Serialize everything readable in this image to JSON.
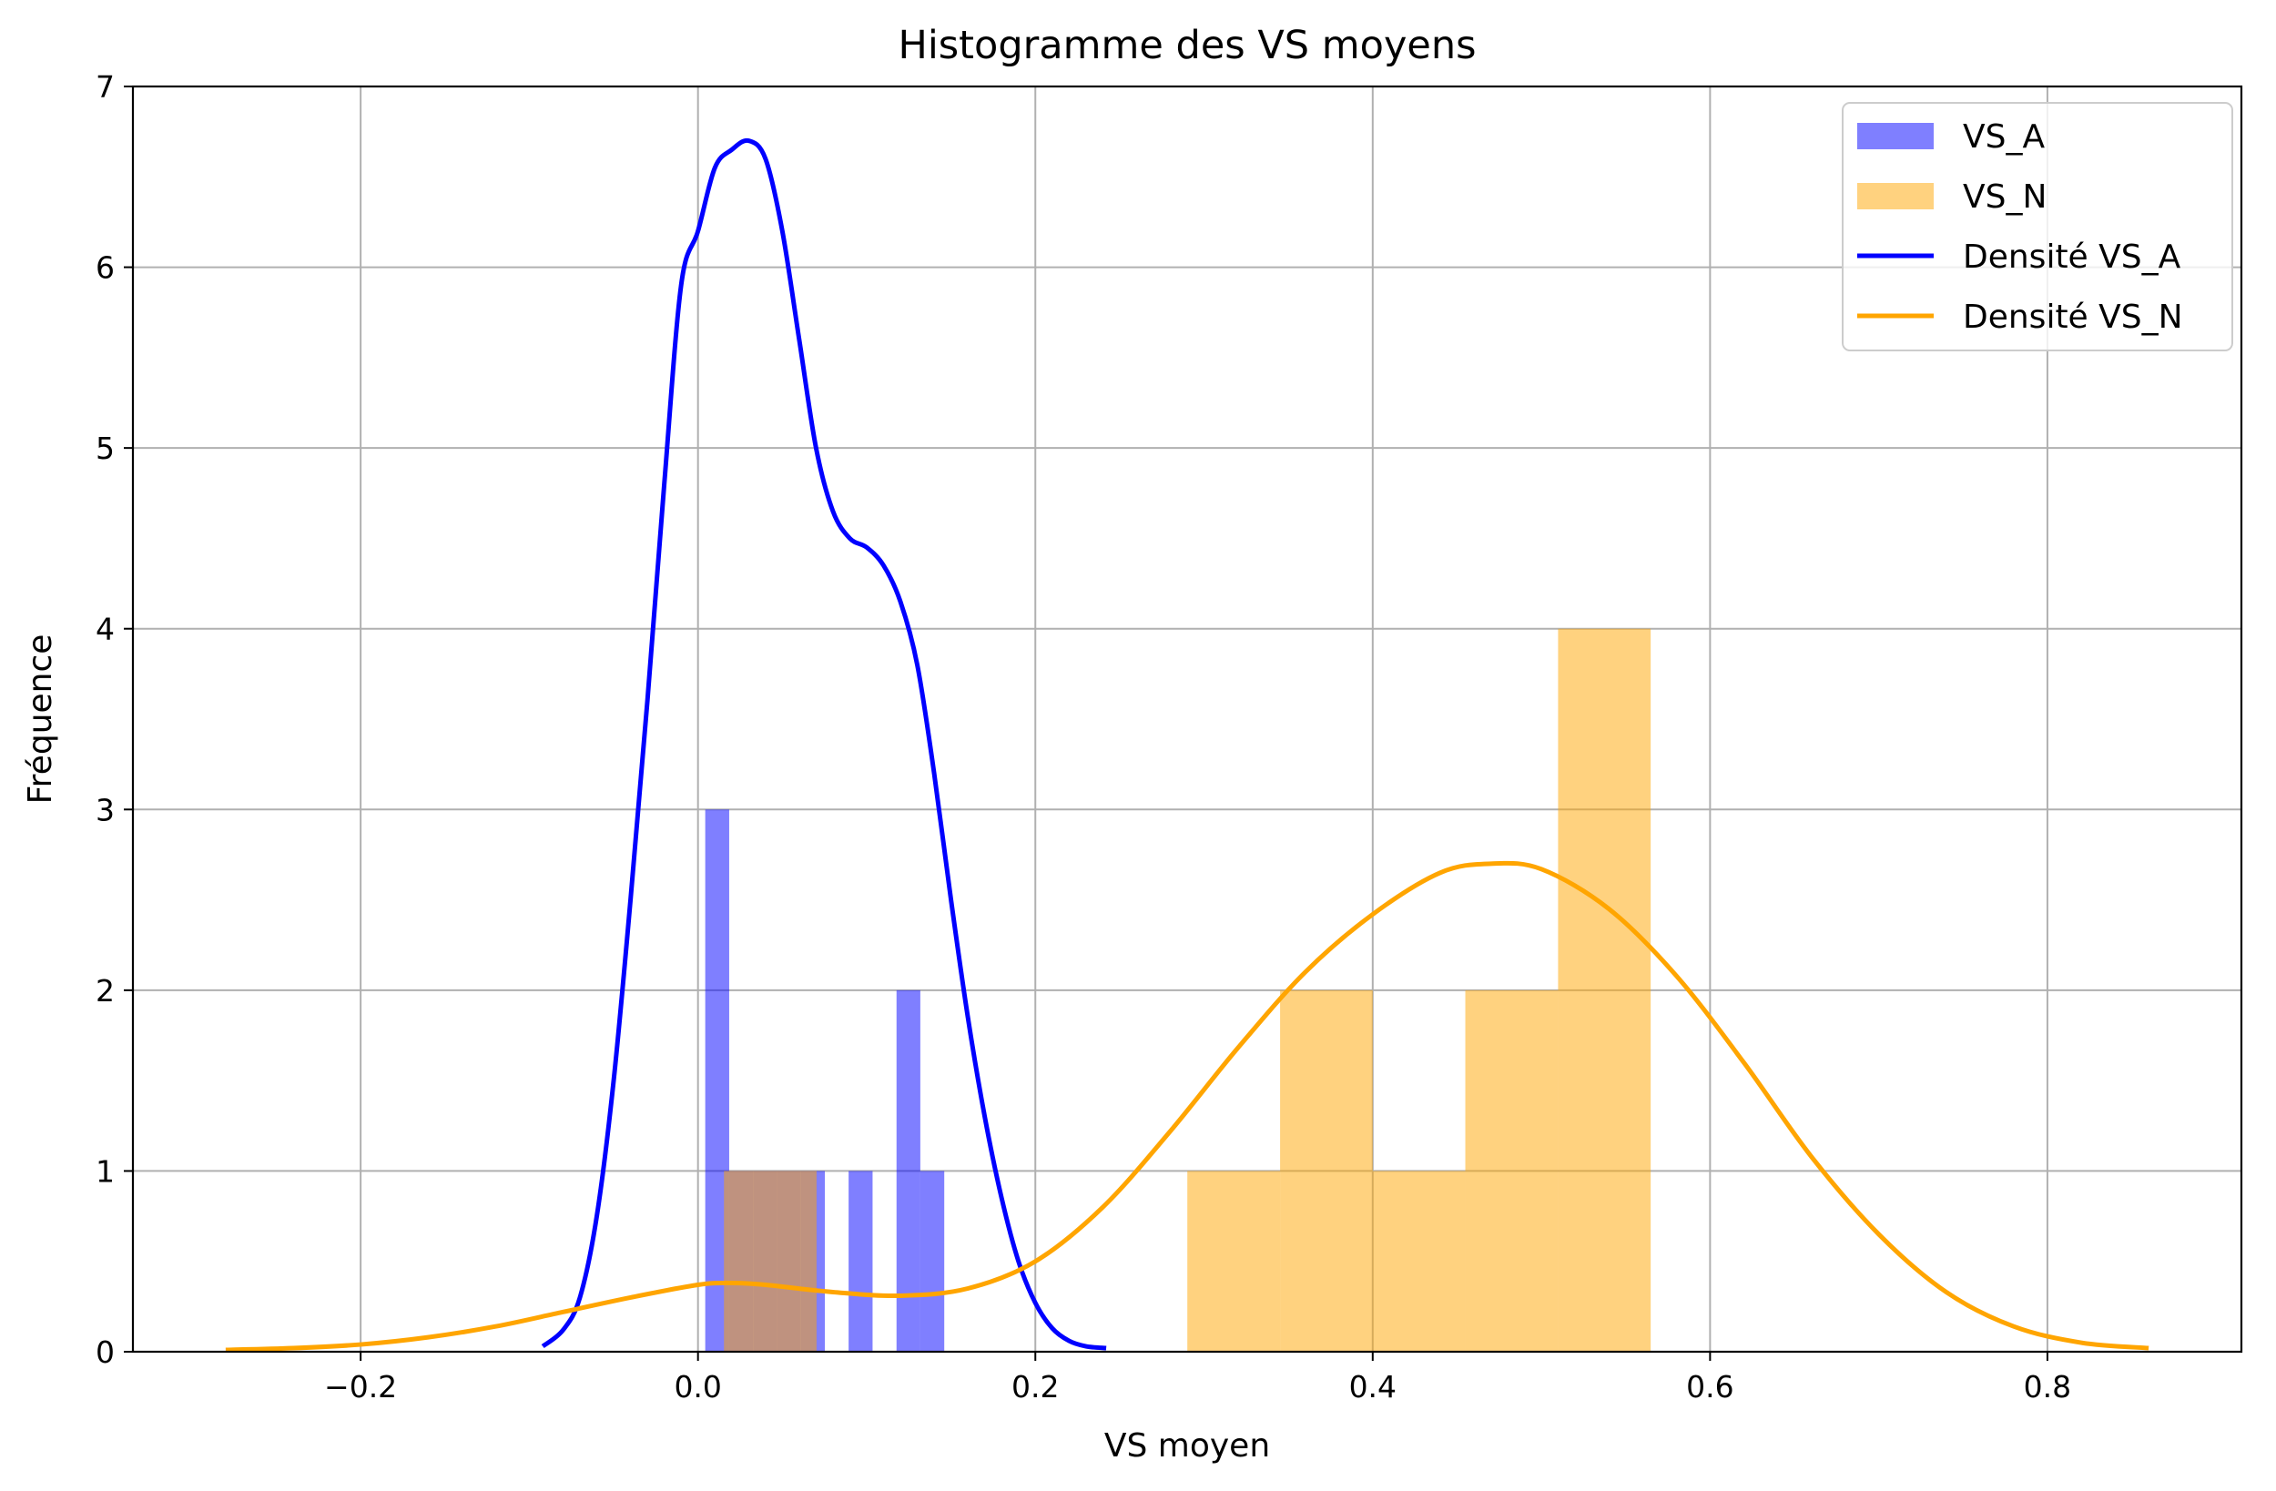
{
  "chart_data": {
    "type": "bar",
    "title": "Histogramme des VS moyens",
    "xlabel": "VS moyen",
    "ylabel": "Fréquence",
    "xlim": [
      -0.335,
      0.915
    ],
    "ylim": [
      0,
      7
    ],
    "xticks": [
      -0.2,
      0.0,
      0.2,
      0.4,
      0.6,
      0.8
    ],
    "xtick_labels": [
      "−0.2",
      "0.0",
      "0.2",
      "0.4",
      "0.6",
      "0.8"
    ],
    "yticks": [
      0,
      1,
      2,
      3,
      4,
      5,
      6,
      7
    ],
    "ytick_labels": [
      "0",
      "1",
      "2",
      "3",
      "4",
      "5",
      "6",
      "7"
    ],
    "grid": true,
    "legend_position": "top-right",
    "series": [
      {
        "name": "VS_A",
        "kind": "histogram",
        "color": "#0000ff",
        "opacity": 0.5,
        "bins": [
          {
            "x0": 0.0043,
            "x1": 0.0185,
            "count": 3
          },
          {
            "x0": 0.0185,
            "x1": 0.0327,
            "count": 1
          },
          {
            "x0": 0.0327,
            "x1": 0.0468,
            "count": 1
          },
          {
            "x0": 0.0468,
            "x1": 0.061,
            "count": 1
          },
          {
            "x0": 0.061,
            "x1": 0.0752,
            "count": 1
          },
          {
            "x0": 0.0752,
            "x1": 0.0893,
            "count": 0
          },
          {
            "x0": 0.0893,
            "x1": 0.1035,
            "count": 1
          },
          {
            "x0": 0.1035,
            "x1": 0.1177,
            "count": 0
          },
          {
            "x0": 0.1177,
            "x1": 0.1318,
            "count": 2
          },
          {
            "x0": 0.1318,
            "x1": 0.146,
            "count": 1
          }
        ]
      },
      {
        "name": "VS_N",
        "kind": "histogram",
        "color": "#ffa500",
        "opacity": 0.5,
        "bins": [
          {
            "x0": 0.0154,
            "x1": 0.0703,
            "count": 1
          },
          {
            "x0": 0.0703,
            "x1": 0.1253,
            "count": 0
          },
          {
            "x0": 0.1253,
            "x1": 0.1802,
            "count": 0
          },
          {
            "x0": 0.1802,
            "x1": 0.2352,
            "count": 0
          },
          {
            "x0": 0.2352,
            "x1": 0.2901,
            "count": 0
          },
          {
            "x0": 0.2901,
            "x1": 0.3451,
            "count": 1
          },
          {
            "x0": 0.3451,
            "x1": 0.4,
            "count": 2
          },
          {
            "x0": 0.4,
            "x1": 0.4549,
            "count": 1
          },
          {
            "x0": 0.4549,
            "x1": 0.5099,
            "count": 2
          },
          {
            "x0": 0.5099,
            "x1": 0.5648,
            "count": 4
          }
        ]
      },
      {
        "name": "Densité VS_A",
        "kind": "line",
        "color": "#0000ff",
        "x": [
          -0.092,
          -0.08,
          -0.07,
          -0.06,
          -0.05,
          -0.04,
          -0.03,
          -0.02,
          -0.01,
          0.0,
          0.01,
          0.02,
          0.03,
          0.04,
          0.05,
          0.06,
          0.07,
          0.08,
          0.09,
          0.1,
          0.11,
          0.12,
          0.13,
          0.14,
          0.15,
          0.16,
          0.17,
          0.18,
          0.19,
          0.2,
          0.21,
          0.22,
          0.23,
          0.242
        ],
        "y": [
          0.03,
          0.12,
          0.3,
          0.75,
          1.5,
          2.5,
          3.6,
          4.8,
          5.9,
          6.2,
          6.55,
          6.65,
          6.7,
          6.6,
          6.2,
          5.6,
          5.0,
          4.65,
          4.5,
          4.45,
          4.35,
          4.15,
          3.8,
          3.2,
          2.5,
          1.85,
          1.3,
          0.85,
          0.5,
          0.27,
          0.13,
          0.06,
          0.03,
          0.02
        ]
      },
      {
        "name": "Densité VS_N",
        "kind": "line",
        "color": "#ffa500",
        "x": [
          -0.28,
          -0.24,
          -0.2,
          -0.16,
          -0.12,
          -0.08,
          -0.04,
          0.0,
          0.02,
          0.04,
          0.08,
          0.12,
          0.16,
          0.2,
          0.24,
          0.28,
          0.32,
          0.36,
          0.4,
          0.44,
          0.47,
          0.5,
          0.54,
          0.58,
          0.62,
          0.66,
          0.7,
          0.74,
          0.78,
          0.82,
          0.86
        ],
        "y": [
          0.01,
          0.02,
          0.04,
          0.08,
          0.14,
          0.22,
          0.3,
          0.37,
          0.38,
          0.37,
          0.33,
          0.31,
          0.35,
          0.5,
          0.8,
          1.22,
          1.68,
          2.1,
          2.42,
          2.65,
          2.7,
          2.67,
          2.45,
          2.08,
          1.6,
          1.08,
          0.65,
          0.33,
          0.14,
          0.05,
          0.02
        ]
      }
    ]
  }
}
